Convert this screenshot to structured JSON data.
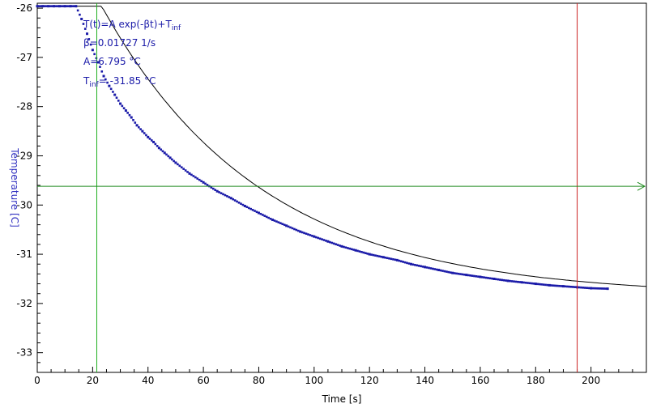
{
  "chart_data": {
    "type": "scatter",
    "xlabel": "Time [s]",
    "ylabel": "Temperature [C]",
    "xlim": [
      0,
      220
    ],
    "ylim": [
      -33.4,
      -25.9
    ],
    "x_ticks": [
      0,
      20,
      40,
      60,
      80,
      100,
      120,
      140,
      160,
      180,
      200
    ],
    "y_ticks": [
      -26,
      -27,
      -28,
      -29,
      -30,
      -31,
      -32,
      -33
    ],
    "annotations": {
      "formula_prefix": "T(t)=A exp(-βt)+T",
      "formula_sub": "inf",
      "beta_line": "β=0.01727 1/s",
      "a_line": "A=6.795 °C",
      "tinf_prefix": "T",
      "tinf_sub": "inf",
      "tinf_value": "= -31.85 °C"
    },
    "cursors": {
      "vertical_green_x": 21.5,
      "vertical_red_x": 195,
      "horizontal_green_y": -29.62
    },
    "fit": {
      "A": 6.795,
      "beta": 0.01727,
      "T_inf": -31.85,
      "x_start": 8,
      "x_end": 220
    },
    "series": [
      {
        "x": [
          0,
          2,
          4,
          6,
          8,
          10,
          12,
          14,
          16,
          18,
          20,
          22,
          24,
          26,
          28,
          30,
          32,
          34,
          36,
          38,
          40,
          42,
          44,
          46,
          48,
          50,
          55,
          60,
          65,
          70,
          75,
          80,
          85,
          90,
          95,
          100,
          105,
          110,
          115,
          120,
          125,
          130,
          135,
          140,
          145,
          150,
          155,
          160,
          165,
          170,
          175,
          180,
          185,
          190,
          195,
          200,
          206
        ],
        "y": [
          -25.96,
          -25.96,
          -25.96,
          -25.96,
          -25.96,
          -25.96,
          -25.96,
          -25.96,
          -26.22,
          -26.52,
          -26.85,
          -27.1,
          -27.38,
          -27.58,
          -27.76,
          -27.94,
          -28.08,
          -28.22,
          -28.38,
          -28.5,
          -28.62,
          -28.72,
          -28.84,
          -28.94,
          -29.04,
          -29.14,
          -29.36,
          -29.54,
          -29.72,
          -29.86,
          -30.02,
          -30.16,
          -30.3,
          -30.42,
          -30.54,
          -30.64,
          -30.74,
          -30.84,
          -30.92,
          -31.0,
          -31.06,
          -31.12,
          -31.2,
          -31.26,
          -31.32,
          -31.38,
          -31.42,
          -31.46,
          -31.5,
          -31.54,
          -31.57,
          -31.6,
          -31.63,
          -31.65,
          -31.67,
          -31.69,
          -31.7
        ]
      }
    ]
  },
  "colors": {
    "data": "#1a1aa8",
    "fit": "#000000",
    "green_cursor": "#1fb01f",
    "h_cursor": "#1f8a1f",
    "red_cursor": "#cc2222",
    "axis_label": "#3030c0"
  }
}
